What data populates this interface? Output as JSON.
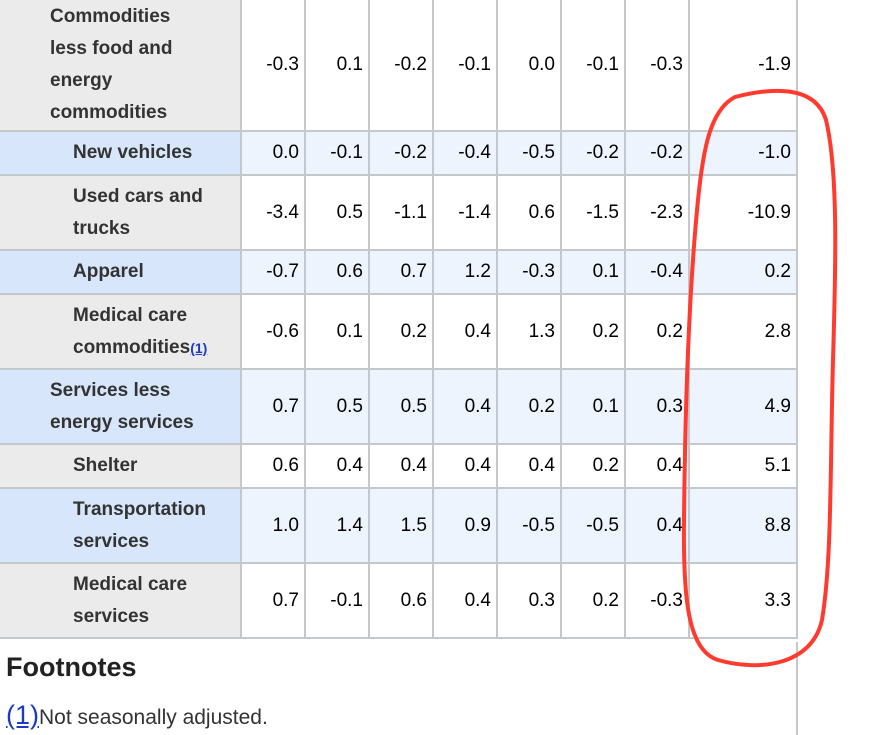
{
  "table": {
    "rows": [
      {
        "label": [
          "Commodities",
          "less food and",
          "energy",
          "commodities"
        ],
        "indent": "l0",
        "blue": false,
        "values": [
          "-0.3",
          "0.1",
          "-0.2",
          "-0.1",
          "0.0",
          "-0.1",
          "-0.3",
          "-1.9"
        ]
      },
      {
        "label": [
          "New vehicles"
        ],
        "indent": "l2",
        "blue": true,
        "values": [
          "0.0",
          "-0.1",
          "-0.2",
          "-0.4",
          "-0.5",
          "-0.2",
          "-0.2",
          "-1.0"
        ]
      },
      {
        "label": [
          "Used cars and",
          "trucks"
        ],
        "indent": "l2",
        "blue": false,
        "values": [
          "-3.4",
          "0.5",
          "-1.1",
          "-1.4",
          "0.6",
          "-1.5",
          "-2.3",
          "-10.9"
        ]
      },
      {
        "label": [
          "Apparel"
        ],
        "indent": "l2",
        "blue": true,
        "values": [
          "-0.7",
          "0.6",
          "0.7",
          "1.2",
          "-0.3",
          "0.1",
          "-0.4",
          "0.2"
        ]
      },
      {
        "label": [
          "Medical care",
          "commodities"
        ],
        "footnote": "(1)",
        "indent": "l2",
        "blue": false,
        "values": [
          "-0.6",
          "0.1",
          "0.2",
          "0.4",
          "1.3",
          "0.2",
          "0.2",
          "2.8"
        ]
      },
      {
        "label": [
          "Services less",
          "energy services"
        ],
        "indent": "l0",
        "blue": true,
        "values": [
          "0.7",
          "0.5",
          "0.5",
          "0.4",
          "0.2",
          "0.1",
          "0.3",
          "4.9"
        ]
      },
      {
        "label": [
          "Shelter"
        ],
        "indent": "l2",
        "blue": false,
        "values": [
          "0.6",
          "0.4",
          "0.4",
          "0.4",
          "0.4",
          "0.2",
          "0.4",
          "5.1"
        ]
      },
      {
        "label": [
          "Transportation",
          "services"
        ],
        "indent": "l2",
        "blue": true,
        "values": [
          "1.0",
          "1.4",
          "1.5",
          "0.9",
          "-0.5",
          "-0.5",
          "0.4",
          "8.8"
        ]
      },
      {
        "label": [
          "Medical care",
          "services"
        ],
        "indent": "l2",
        "blue": false,
        "values": [
          "0.7",
          "-0.1",
          "0.6",
          "0.4",
          "0.3",
          "0.2",
          "-0.3",
          "3.3"
        ]
      }
    ]
  },
  "footnotes": {
    "title": "Footnotes",
    "items": [
      {
        "ref": "(1)",
        "text": "Not seasonally adjusted."
      }
    ]
  },
  "annotation": {
    "color": "#ff3b30",
    "shape": "hand-drawn-oval"
  }
}
